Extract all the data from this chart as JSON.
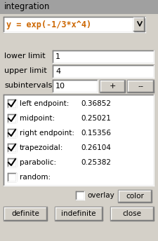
{
  "title": "integration",
  "bg_color": "#d4d0c8",
  "title_bg": "#a0a0a0",
  "formula": "y = exp(-1/3*x^4)",
  "formula_color": "#cc6600",
  "lower_limit_label": "lower limit",
  "lower_limit_value": "1",
  "upper_limit_label": "upper limit",
  "upper_limit_value": "4",
  "subintervals_label": "subintervals",
  "subintervals_value": "10",
  "btn_plus": "+",
  "btn_minus": "--",
  "results": [
    {
      "label": "left endpoint:",
      "value": "0.36852",
      "checked": true
    },
    {
      "label": "midpoint:",
      "value": "0.25021",
      "checked": true
    },
    {
      "label": "right endpoint:",
      "value": "0.15356",
      "checked": true
    },
    {
      "label": "trapezoidal:",
      "value": "0.26104",
      "checked": true
    },
    {
      "label": "parabolic:",
      "value": "0.25382",
      "checked": true
    },
    {
      "label": "random:",
      "value": "",
      "checked": false
    }
  ],
  "overlay_label": "overlay",
  "btn_definite": "definite",
  "btn_indefinite": "indefinite",
  "btn_close": "close",
  "btn_color": "color",
  "white": "#ffffff",
  "edge_color": "#999999",
  "edge_dark": "#666666",
  "edge_light": "#ffffff",
  "check_color": "#000000"
}
